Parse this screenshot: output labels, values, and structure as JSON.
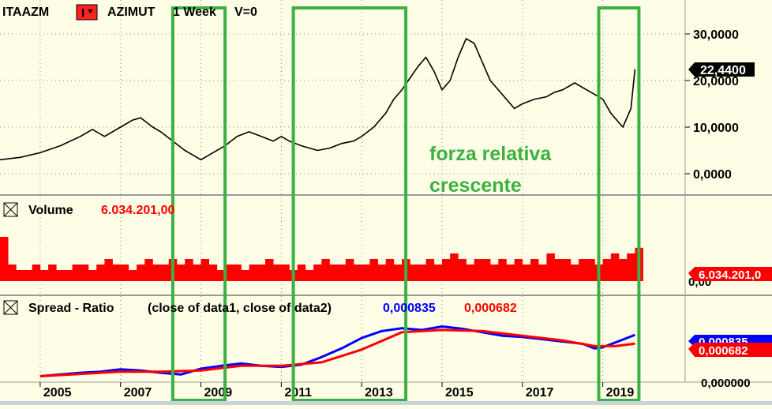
{
  "header": {
    "symbol": "ITAAZM",
    "series_button": "I",
    "name": "AZIMUT",
    "interval": "1 Week",
    "volume_flag": "V=0"
  },
  "panels": {
    "volume": {
      "label": "Volume",
      "value": "6.034.201,00",
      "axis_badge": "6.034.201,0",
      "axis_label": "0,00"
    },
    "ratio": {
      "label": "Spread - Ratio",
      "params": "(close of data1,  close of data2)",
      "value_blue": "0,000835",
      "value_red": "0,000682",
      "badge_blue": "0,000835",
      "badge_red": "0,000682",
      "axis_label": "0,000000"
    }
  },
  "price_axis": {
    "ticks": [
      "30,0000",
      "20,0000",
      "10,0000",
      "0,0000"
    ],
    "tick_values": [
      30,
      20,
      10,
      0
    ],
    "last_value_badge": "22,4400"
  },
  "annotation": {
    "line1": "forza relativa",
    "line2": "crescente",
    "color": "#3cb043"
  },
  "colors": {
    "background": "#fefee6",
    "price_line": "#000000",
    "volume_bars": "#ff0000",
    "ratio_blue": "#0000ff",
    "ratio_red": "#ff0000",
    "highlight_box": "#3cb043",
    "grid": "#8a8a8a"
  },
  "chart_data": [
    {
      "type": "line",
      "panel": "price",
      "series": [
        {
          "x": [
            2004.0,
            2004.5,
            2005.0,
            2005.5,
            2006.0,
            2006.3,
            2006.6,
            2007.0,
            2007.3,
            2007.5,
            2007.8,
            2008.0,
            2008.3,
            2008.6,
            2008.8,
            2009.0,
            2009.3,
            2009.6,
            2009.9,
            2010.2,
            2010.5,
            2010.8,
            2011.0,
            2011.2,
            2011.5,
            2011.9,
            2012.2,
            2012.5,
            2012.8,
            2013.0,
            2013.3,
            2013.6,
            2013.8,
            2014.0,
            2014.2,
            2014.4,
            2014.6,
            2014.8,
            2015.0,
            2015.2,
            2015.4,
            2015.6,
            2015.8,
            2016.0,
            2016.2,
            2016.5,
            2016.8,
            2017.0,
            2017.3,
            2017.6,
            2017.8,
            2018.0,
            2018.3,
            2018.6,
            2018.8,
            2019.0,
            2019.2,
            2019.5,
            2019.7,
            2019.8
          ],
          "values": [
            3,
            3.5,
            4.5,
            6,
            8,
            9.5,
            8,
            10,
            11.5,
            12,
            10,
            9,
            7,
            5,
            4,
            3,
            4.5,
            6,
            8,
            9,
            8,
            7,
            8,
            7,
            6,
            5,
            5.5,
            6.5,
            7,
            8,
            10,
            13,
            16,
            18,
            20.5,
            23,
            25,
            22,
            18,
            20,
            25,
            29,
            28,
            24,
            20,
            17,
            14,
            15,
            16,
            16.5,
            17.5,
            18,
            19.5,
            18,
            17,
            16,
            13,
            10,
            14,
            22.44
          ]
        }
      ]
    },
    {
      "type": "bar",
      "panel": "volume",
      "series": [
        {
          "name": "Volume",
          "x": [
            2004.0,
            2004.2,
            2004.4,
            2004.6,
            2004.8,
            2005.0,
            2005.2,
            2005.4,
            2005.6,
            2005.8,
            2006.0,
            2006.2,
            2006.4,
            2006.6,
            2006.8,
            2007.0,
            2007.2,
            2007.4,
            2007.6,
            2007.8,
            2008.0,
            2008.2,
            2008.4,
            2008.6,
            2008.8,
            2009.0,
            2009.2,
            2009.4,
            2009.6,
            2009.8,
            2010.0,
            2010.2,
            2010.4,
            2010.6,
            2010.8,
            2011.0,
            2011.2,
            2011.4,
            2011.6,
            2011.8,
            2012.0,
            2012.2,
            2012.4,
            2012.6,
            2012.8,
            2013.0,
            2013.2,
            2013.4,
            2013.6,
            2013.8,
            2014.0,
            2014.2,
            2014.4,
            2014.6,
            2014.8,
            2015.0,
            2015.2,
            2015.4,
            2015.6,
            2015.8,
            2016.0,
            2016.2,
            2016.4,
            2016.6,
            2016.8,
            2017.0,
            2017.2,
            2017.4,
            2017.6,
            2017.8,
            2018.0,
            2018.2,
            2018.4,
            2018.6,
            2018.8,
            2019.0,
            2019.2,
            2019.4,
            2019.6,
            2019.8
          ],
          "values": [
            8,
            3,
            2,
            2,
            3,
            2,
            3,
            2,
            2,
            3,
            3,
            2,
            3,
            4,
            3,
            3,
            2,
            3,
            4,
            3,
            3,
            4,
            3,
            4,
            3,
            4,
            3,
            2,
            3,
            3,
            2,
            3,
            3,
            4,
            3,
            3,
            2,
            3,
            2,
            3,
            4,
            3,
            3,
            4,
            3,
            3,
            4,
            3,
            4,
            3,
            4,
            3,
            3,
            4,
            3,
            4,
            5,
            4,
            3,
            4,
            4,
            3,
            4,
            3,
            4,
            3,
            4,
            3,
            5,
            4,
            4,
            3,
            4,
            4,
            3,
            4,
            5,
            4,
            5,
            6.03
          ]
        }
      ]
    },
    {
      "type": "line",
      "panel": "ratio",
      "series": [
        {
          "name": "close of data1 / close of data2",
          "x": [
            2005.0,
            2005.5,
            2006.0,
            2006.5,
            2007.0,
            2007.5,
            2008.0,
            2008.5,
            2009.0,
            2009.5,
            2010.0,
            2010.5,
            2011.0,
            2011.5,
            2012.0,
            2012.5,
            2013.0,
            2013.5,
            2014.0,
            2014.5,
            2015.0,
            2015.5,
            2016.0,
            2016.5,
            2017.0,
            2017.5,
            2018.0,
            2018.5,
            2018.8,
            2019.0,
            2019.3,
            2019.6,
            2019.8
          ],
          "values": [
            0.00012,
            0.00015,
            0.00018,
            0.0002,
            0.00024,
            0.00022,
            0.00018,
            0.00015,
            0.00025,
            0.0003,
            0.00034,
            0.0003,
            0.00028,
            0.00032,
            0.00045,
            0.0006,
            0.00078,
            0.0009,
            0.00095,
            0.00092,
            0.00098,
            0.00094,
            0.00088,
            0.00082,
            0.0008,
            0.00076,
            0.00072,
            0.00068,
            0.0006,
            0.00062,
            0.0007,
            0.00078,
            0.000835
          ]
        },
        {
          "name": "Moving average",
          "x": [
            2005.0,
            2006.0,
            2007.0,
            2008.0,
            2009.0,
            2010.0,
            2011.0,
            2012.0,
            2013.0,
            2014.0,
            2015.0,
            2016.0,
            2017.0,
            2018.0,
            2018.8,
            2019.3,
            2019.8
          ],
          "values": [
            0.00012,
            0.00016,
            0.0002,
            0.0002,
            0.00022,
            0.0003,
            0.0003,
            0.00036,
            0.00058,
            0.00088,
            0.00092,
            0.0009,
            0.00082,
            0.00074,
            0.00064,
            0.00064,
            0.000682
          ]
        }
      ]
    }
  ],
  "x_axis": {
    "ticks": [
      "2005",
      "2007",
      "2009",
      "2011",
      "2013",
      "2015",
      "2017",
      "2019"
    ],
    "tick_years": [
      2005,
      2007,
      2009,
      2011,
      2013,
      2015,
      2017,
      2019
    ]
  },
  "highlight_ranges": [
    [
      2008.3,
      2009.6
    ],
    [
      2011.3,
      2014.1
    ],
    [
      2018.9,
      2019.9
    ]
  ]
}
